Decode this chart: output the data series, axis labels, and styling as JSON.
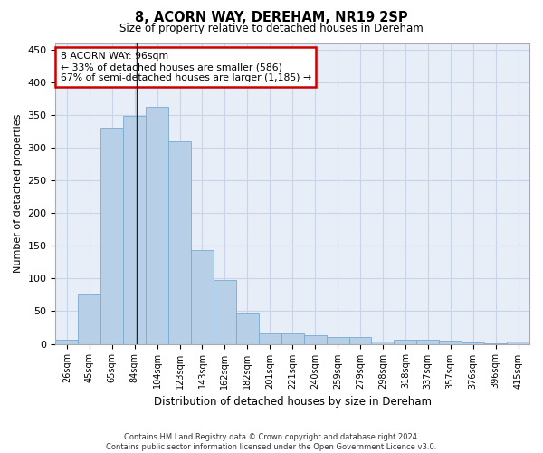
{
  "title": "8, ACORN WAY, DEREHAM, NR19 2SP",
  "subtitle": "Size of property relative to detached houses in Dereham",
  "xlabel": "Distribution of detached houses by size in Dereham",
  "ylabel": "Number of detached properties",
  "bar_color": "#b8cfe8",
  "bar_edge_color": "#7aaad0",
  "categories": [
    "26sqm",
    "45sqm",
    "65sqm",
    "84sqm",
    "104sqm",
    "123sqm",
    "143sqm",
    "162sqm",
    "182sqm",
    "201sqm",
    "221sqm",
    "240sqm",
    "259sqm",
    "279sqm",
    "298sqm",
    "318sqm",
    "337sqm",
    "357sqm",
    "376sqm",
    "396sqm",
    "415sqm"
  ],
  "values": [
    6,
    75,
    330,
    348,
    363,
    310,
    143,
    98,
    47,
    16,
    16,
    13,
    10,
    10,
    4,
    6,
    6,
    5,
    2,
    1,
    3
  ],
  "ylim": [
    0,
    460
  ],
  "yticks": [
    0,
    50,
    100,
    150,
    200,
    250,
    300,
    350,
    400,
    450
  ],
  "annotation_text": "8 ACORN WAY: 96sqm\n← 33% of detached houses are smaller (586)\n67% of semi-detached houses are larger (1,185) →",
  "annotation_box_color": "#ffffff",
  "annotation_box_edge_color": "#cc0000",
  "background_color": "#ffffff",
  "plot_bg_color": "#e8eef8",
  "grid_color": "#c8d4e8",
  "footer_line1": "Contains HM Land Registry data © Crown copyright and database right 2024.",
  "footer_line2": "Contains public sector information licensed under the Open Government Licence v3.0."
}
